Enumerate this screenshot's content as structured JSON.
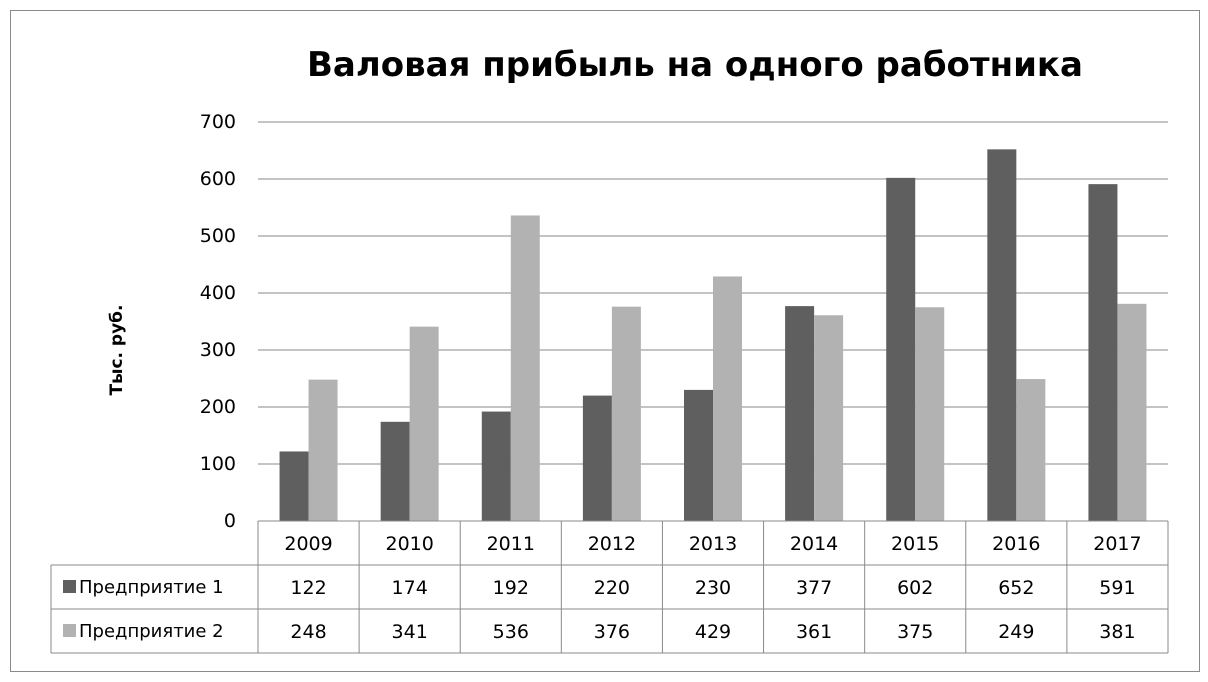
{
  "chart_data": {
    "type": "bar",
    "title": "Валовая прибыль на одного работника",
    "ylabel": "Тыс. руб.",
    "xlabel": "",
    "categories": [
      "2009",
      "2010",
      "2011",
      "2012",
      "2013",
      "2014",
      "2015",
      "2016",
      "2017"
    ],
    "ylim": [
      0,
      700
    ],
    "yticks": [
      0,
      100,
      200,
      300,
      400,
      500,
      600,
      700
    ],
    "grid": true,
    "legend": "data-table-left",
    "series": [
      {
        "name": "Предприятие 1",
        "color": "#5f5f5f",
        "values": [
          122,
          174,
          192,
          220,
          230,
          377,
          602,
          652,
          591
        ]
      },
      {
        "name": "Предприятие 2",
        "color": "#b2b2b2",
        "values": [
          248,
          341,
          536,
          376,
          429,
          361,
          375,
          249,
          381
        ]
      }
    ]
  }
}
